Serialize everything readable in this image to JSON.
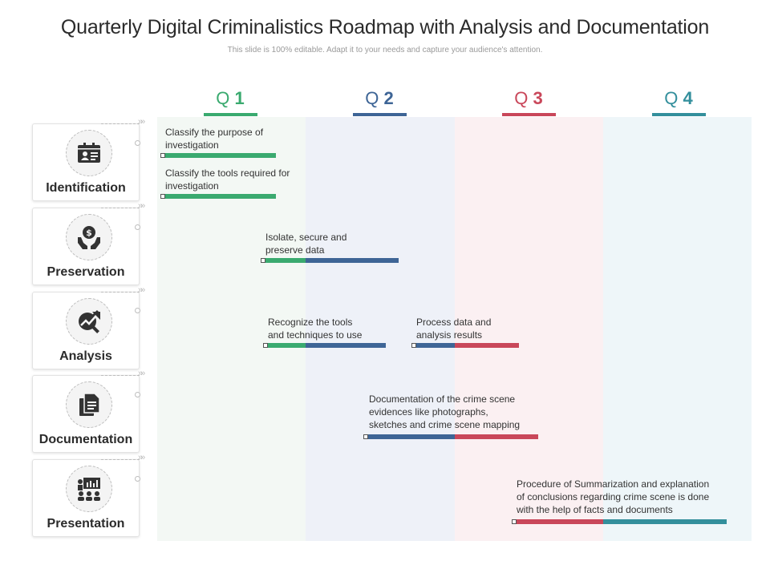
{
  "header": {
    "title": "Quarterly Digital Criminalistics Roadmap with Analysis and Documentation",
    "subtitle": "This slide is 100% editable. Adapt it to your needs and capture your audience's attention."
  },
  "quarters": [
    {
      "prefix": "Q",
      "num": "1",
      "color": "#3aaa6f",
      "band": "#f3f8f4"
    },
    {
      "prefix": "Q",
      "num": "2",
      "color": "#3e6596",
      "band": "#eef1f8"
    },
    {
      "prefix": "Q",
      "num": "3",
      "color": "#c9475a",
      "band": "#fbf0f2"
    },
    {
      "prefix": "Q",
      "num": "4",
      "color": "#338f9c",
      "band": "#eef6f9"
    }
  ],
  "phases": [
    {
      "label": "Identification",
      "icon": "id-card-icon"
    },
    {
      "label": "Preservation",
      "icon": "money-hands-icon"
    },
    {
      "label": "Analysis",
      "icon": "chart-magnifier-icon"
    },
    {
      "label": "Documentation",
      "icon": "documents-icon"
    },
    {
      "label": "Presentation",
      "icon": "presentation-board-icon"
    }
  ],
  "tasks": [
    {
      "lines": [
        "Classify the purpose of",
        "investigation"
      ]
    },
    {
      "lines": [
        "Classify the tools required for",
        "investigation"
      ]
    },
    {
      "lines": [
        "Isolate, secure and",
        "preserve  data"
      ]
    },
    {
      "lines": [
        "Recognize  the tools",
        "and techniques to use"
      ]
    },
    {
      "lines": [
        "Process data and",
        "analysis results"
      ]
    },
    {
      "lines": [
        "Documentation of the crime scene",
        "evidences like photographs,",
        "sketches and crime scene mapping"
      ]
    },
    {
      "lines": [
        "Procedure  of Summarization and explanation",
        "of conclusions regarding crime  scene is done",
        "with the help of facts and documents"
      ]
    }
  ]
}
